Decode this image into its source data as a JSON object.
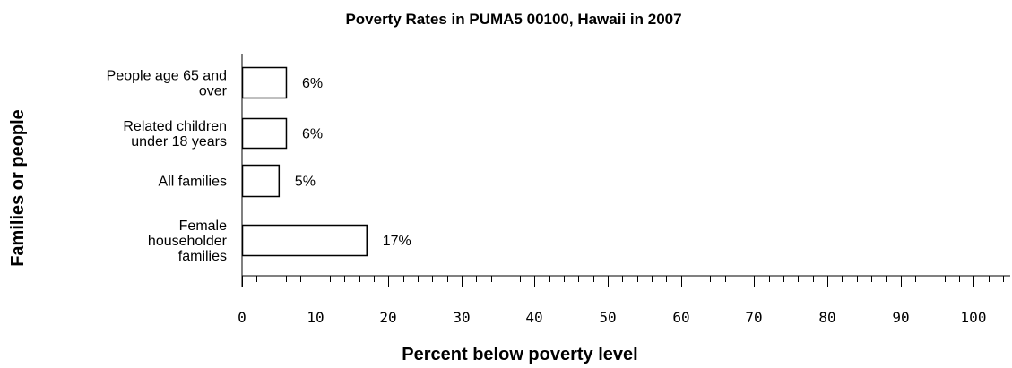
{
  "chart_data": {
    "type": "bar",
    "orientation": "horizontal",
    "title": "Poverty Rates in PUMA5 00100, Hawaii in 2007",
    "xlabel": "Percent below poverty level",
    "ylabel": "Families or people",
    "categories": [
      [
        "People age 65 and",
        "over"
      ],
      [
        "Related children",
        "under 18 years"
      ],
      [
        "All families"
      ],
      [
        "Female",
        "householder",
        "families"
      ]
    ],
    "values": [
      6,
      6,
      5,
      17
    ],
    "value_labels": [
      "6%",
      "6%",
      "5%",
      "17%"
    ],
    "xlim": [
      0,
      105
    ],
    "xticks": [
      0,
      10,
      20,
      30,
      40,
      50,
      60,
      70,
      80,
      90,
      100
    ],
    "xtick_labels": [
      "0",
      "10",
      "20",
      "30",
      "40",
      "50",
      "60",
      "70",
      "80",
      "90",
      "100"
    ],
    "minor_tick_step": 2,
    "grid": false,
    "legend": "none",
    "colors": {
      "bar_fill": "#ffffff",
      "bar_stroke": "#000000",
      "axis": "#000000",
      "text": "#000000"
    }
  }
}
